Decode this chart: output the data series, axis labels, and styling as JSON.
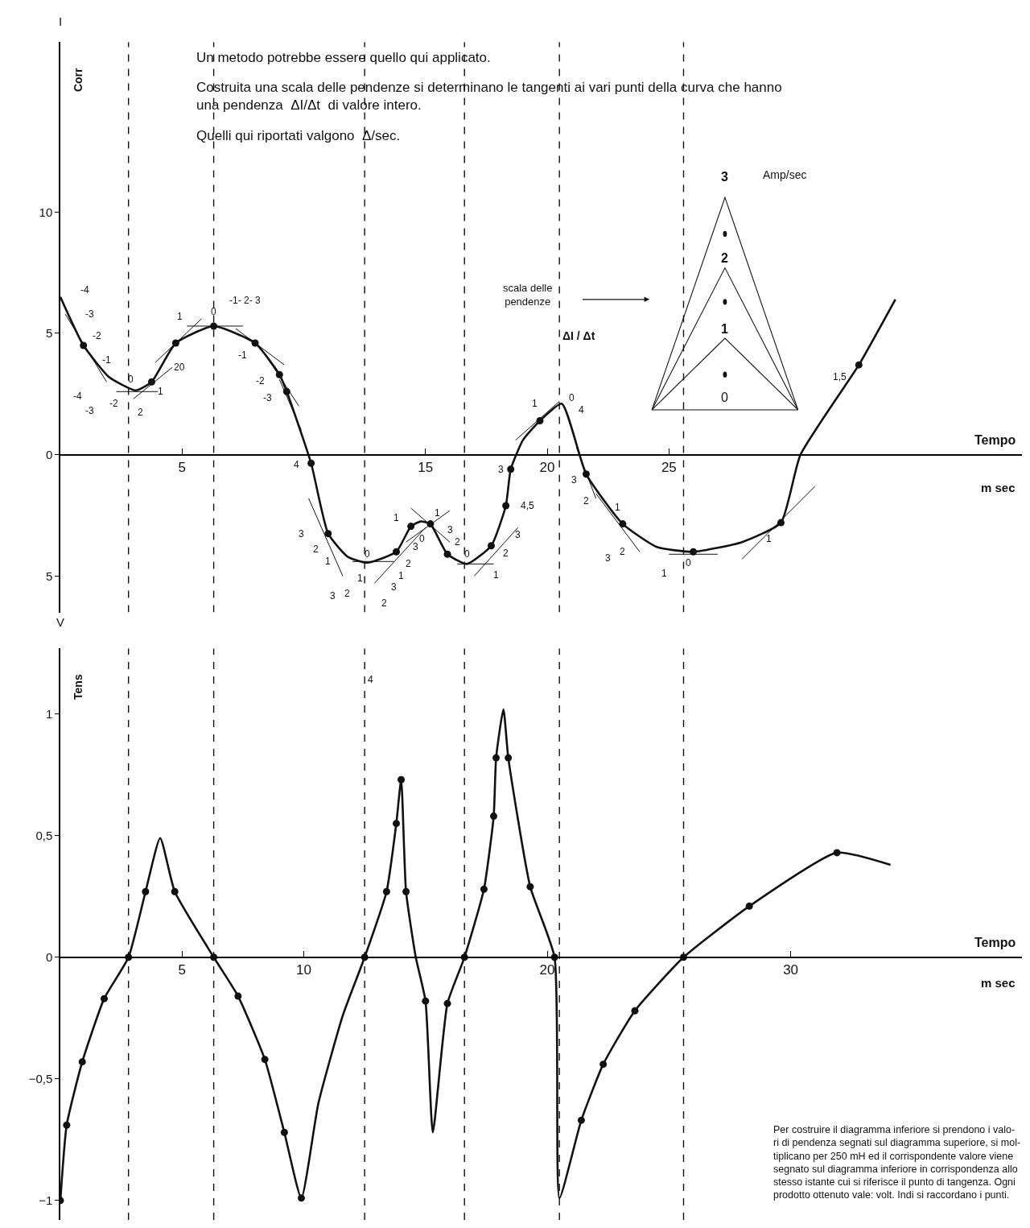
{
  "chart_data": [
    {
      "type": "line",
      "xlabel": "Tempo",
      "ylabel": "Corr",
      "xlim": [
        0,
        39.5
      ],
      "ylim": [
        -6.5,
        17
      ],
      "xticks": [
        5,
        15,
        20,
        25
      ],
      "yticks": [
        {
          "value": -5,
          "label": "5"
        },
        0,
        5,
        10
      ],
      "series": [
        {
          "color": "#111111",
          "marker": "none",
          "line_style": "solid",
          "x": [
            0,
            0.95,
            2,
            3.1,
            3.75,
            4.74,
            6.3,
            8.0,
            9.0,
            9.3,
            10.3,
            11.0,
            11.8,
            12.6,
            13.8,
            14.4,
            14.8,
            15.2,
            15.9,
            16.7,
            17.7,
            18.3,
            18.5,
            19.0,
            19.7,
            20.6,
            21.6,
            23.1,
            24.5,
            26.0,
            28,
            29.6,
            30.4,
            32.8,
            34.3
          ],
          "values": [
            6.5,
            4.5,
            3.2,
            2.65,
            3.0,
            4.6,
            5.3,
            4.6,
            3.3,
            2.6,
            -0.35,
            -3.25,
            -4.2,
            -4.45,
            -4.0,
            -2.95,
            -2.75,
            -2.85,
            -4.1,
            -4.5,
            -3.75,
            -2.1,
            -0.6,
            0.6,
            1.4,
            2.1,
            -0.8,
            -2.85,
            -3.8,
            -4.0,
            -3.6,
            -2.8,
            0,
            3.7,
            6.4
          ]
        },
        {
          "type": "scatter",
          "color": "#111111",
          "marker": "circle",
          "x": [
            0.95,
            3.75,
            4.74,
            6.3,
            8.0,
            9.0,
            9.3,
            10.3,
            11.0,
            13.8,
            14.4,
            15.2,
            15.9,
            17.7,
            18.3,
            18.5,
            19.7,
            21.6,
            23.1,
            26.0,
            29.6,
            32.8
          ],
          "values": [
            4.5,
            3.0,
            4.6,
            5.3,
            4.6,
            3.3,
            2.6,
            -0.35,
            -3.25,
            -4.0,
            -2.95,
            -2.85,
            -4.1,
            -3.75,
            -2.1,
            -0.6,
            1.4,
            -0.8,
            -2.85,
            -4.0,
            -2.8,
            3.7
          ]
        },
        {
          "color": "#111111",
          "marker": "none",
          "x": [
            0.2,
            1.9
          ],
          "values": [
            5.8,
            3.0
          ]
        },
        {
          "color": "#111111",
          "marker": "none",
          "x": [
            2.3,
            4.0
          ],
          "values": [
            2.6,
            2.6
          ]
        },
        {
          "color": "#111111",
          "marker": "none",
          "x": [
            3.0,
            4.6
          ],
          "values": [
            2.3,
            3.6
          ]
        },
        {
          "color": "#111111",
          "marker": "none",
          "x": [
            3.9,
            5.8
          ],
          "values": [
            3.8,
            5.6
          ]
        },
        {
          "color": "#111111",
          "marker": "none",
          "x": [
            5.2,
            7.5
          ],
          "values": [
            5.3,
            5.3
          ]
        },
        {
          "color": "#111111",
          "marker": "none",
          "x": [
            7.2,
            9.2
          ],
          "values": [
            5.2,
            3.7
          ]
        },
        {
          "color": "#111111",
          "marker": "none",
          "x": [
            8.5,
            9.8
          ],
          "values": [
            4.0,
            2.0
          ]
        },
        {
          "color": "#111111",
          "marker": "none",
          "x": [
            9.0,
            9.9
          ],
          "values": [
            3.1,
            1.0
          ]
        },
        {
          "color": "#111111",
          "marker": "none",
          "x": [
            10.2,
            11.6
          ],
          "values": [
            -1.8,
            -5.0
          ]
        },
        {
          "color": "#111111",
          "marker": "none",
          "x": [
            12.0,
            13.7
          ],
          "values": [
            -4.4,
            -4.4
          ]
        },
        {
          "color": "#111111",
          "marker": "none",
          "x": [
            12.9,
            15.0
          ],
          "values": [
            -5.3,
            -3.0
          ]
        },
        {
          "color": "#111111",
          "marker": "none",
          "x": [
            14.2,
            16.0
          ],
          "values": [
            -3.6,
            -2.3
          ]
        },
        {
          "color": "#111111",
          "marker": "none",
          "x": [
            14.4,
            16.0
          ],
          "values": [
            -2.2,
            -3.6
          ]
        },
        {
          "color": "#111111",
          "marker": "none",
          "x": [
            16.3,
            17.8
          ],
          "values": [
            -4.5,
            -4.5
          ]
        },
        {
          "color": "#111111",
          "marker": "none",
          "x": [
            17.0,
            18.8
          ],
          "values": [
            -5.0,
            -3.0
          ]
        },
        {
          "color": "#111111",
          "marker": "none",
          "x": [
            18.7,
            20.5
          ],
          "values": [
            0.6,
            2.2
          ]
        },
        {
          "color": "#111111",
          "marker": "none",
          "x": [
            21.2,
            22.0
          ],
          "values": [
            0.3,
            -1.8
          ]
        },
        {
          "color": "#111111",
          "marker": "none",
          "x": [
            22.0,
            23.8
          ],
          "values": [
            -1.6,
            -4.0
          ]
        },
        {
          "color": "#111111",
          "marker": "none",
          "x": [
            25.0,
            27.0
          ],
          "values": [
            -4.1,
            -4.1
          ]
        },
        {
          "color": "#111111",
          "marker": "none",
          "x": [
            28.0,
            31.0
          ],
          "values": [
            -4.3,
            -1.3
          ]
        }
      ],
      "ref_lines": [
        {
          "axis": "x",
          "value": 2.8,
          "line_style": "dashed",
          "color": "#111111"
        },
        {
          "axis": "x",
          "value": 6.3,
          "line_style": "dashed",
          "color": "#111111"
        },
        {
          "axis": "x",
          "value": 12.5,
          "line_style": "dashed",
          "color": "#111111"
        },
        {
          "axis": "x",
          "value": 16.6,
          "line_style": "dashed",
          "color": "#111111"
        },
        {
          "axis": "x",
          "value": 20.5,
          "line_style": "dashed",
          "color": "#111111"
        },
        {
          "axis": "x",
          "value": 25.6,
          "line_style": "dashed",
          "color": "#111111"
        }
      ],
      "annotations": [
        "Un metodo potrebbe essere quello qui applicato.",
        "Costruita una scala delle pendenze si determinano le tangenti ai vari punti della curva che hanno\nuna pendenza  ΔI/Δt  di valore intero.",
        "Quelli qui riportati valgono  Δ/sec.",
        "scala delle\npendenze",
        "ΔI / Δt",
        "3",
        "Amp/sec",
        "2",
        "1",
        "0",
        "I",
        "m sec",
        "-4",
        "-3",
        "-2",
        "-1",
        "-4",
        "-3",
        "-2",
        "0",
        "2",
        "1",
        "20",
        "1",
        "0",
        "-1- 2- 3",
        "-1",
        "-2",
        "-3",
        "4",
        "3",
        "2",
        "1",
        "3",
        "2",
        "1",
        "0",
        "1",
        "0",
        "3",
        "2",
        "1",
        "3",
        "2",
        "1",
        "3",
        "2",
        "0",
        "3",
        "4,5",
        "3",
        "2",
        "1",
        "1",
        "0",
        "4",
        "3",
        "2",
        "1",
        "3",
        "2",
        "1",
        "0",
        "1",
        "1,5"
      ]
    },
    {
      "type": "line",
      "xlabel": "Tempo",
      "ylabel": "Tens",
      "xlim": [
        0,
        39.5
      ],
      "ylim": [
        -1.08,
        1.27
      ],
      "xticks": [
        5,
        10,
        20,
        30
      ],
      "yticks": [
        {
          "value": -1,
          "label": "−1"
        },
        {
          "value": -0.5,
          "label": "−0,5"
        },
        0,
        {
          "value": 0.5,
          "label": "0,5"
        },
        1
      ],
      "series": [
        {
          "color": "#111111",
          "marker": "none",
          "line_style": "solid",
          "x": [
            0,
            0.26,
            0.9,
            1.8,
            2.8,
            3.5,
            4.1,
            4.7,
            6.3,
            7.3,
            8.4,
            9.2,
            9.9,
            10.6,
            11.6,
            12.5,
            13.4,
            13.8,
            14.0,
            14.2,
            14.6,
            15.0,
            15.3,
            15.9,
            16.6,
            17.4,
            17.8,
            17.9,
            18.2,
            18.4,
            19.3,
            20.3,
            20.5,
            21.4,
            22.3,
            23.6,
            25.6,
            28.3,
            31.9,
            34.1
          ],
          "values": [
            -1,
            -0.69,
            -0.43,
            -0.17,
            0,
            0.27,
            0.49,
            0.27,
            0,
            -0.16,
            -0.42,
            -0.72,
            -0.99,
            -0.6,
            -0.24,
            0,
            0.27,
            0.55,
            0.73,
            0.27,
            0,
            -0.18,
            -0.72,
            -0.19,
            0,
            0.28,
            0.58,
            0.82,
            1.02,
            0.82,
            0.29,
            0,
            -0.99,
            -0.67,
            -0.44,
            -0.22,
            0,
            0.21,
            0.43,
            0.38
          ]
        },
        {
          "type": "scatter",
          "color": "#111111",
          "marker": "circle",
          "x": [
            0,
            0.26,
            0.9,
            1.8,
            2.8,
            3.5,
            4.7,
            6.3,
            7.3,
            8.4,
            9.2,
            9.9,
            12.5,
            13.4,
            13.8,
            14.0,
            14.2,
            15.0,
            15.9,
            16.6,
            17.4,
            17.8,
            17.9,
            18.4,
            19.3,
            20.3,
            21.4,
            22.3,
            23.6,
            25.6,
            28.3,
            31.9
          ],
          "values": [
            -1,
            -0.69,
            -0.43,
            -0.17,
            0,
            0.27,
            0.27,
            0,
            -0.16,
            -0.42,
            -0.72,
            -0.99,
            0,
            0.27,
            0.55,
            0.73,
            0.27,
            -0.18,
            -0.19,
            0,
            0.28,
            0.58,
            0.82,
            0.82,
            0.29,
            0,
            -0.67,
            -0.44,
            -0.22,
            0,
            0.21,
            0.43
          ]
        }
      ],
      "ref_lines": [
        {
          "axis": "x",
          "value": 2.8,
          "line_style": "dashed",
          "color": "#111111"
        },
        {
          "axis": "x",
          "value": 6.3,
          "line_style": "dashed",
          "color": "#111111"
        },
        {
          "axis": "x",
          "value": 12.5,
          "line_style": "dashed",
          "color": "#111111"
        },
        {
          "axis": "x",
          "value": 16.6,
          "line_style": "dashed",
          "color": "#111111"
        },
        {
          "axis": "x",
          "value": 20.5,
          "line_style": "dashed",
          "color": "#111111"
        },
        {
          "axis": "x",
          "value": 25.6,
          "line_style": "dashed",
          "color": "#111111"
        }
      ],
      "annotations": [
        "V",
        "m sec",
        "Per costruire il diagramma inferiore si prendono i valo-\nri di pendenza segnati sul diagramma superiore, si mol-\ntiplicano per 250 mH ed il corrispondente valore viene\nsegnato sul diagramma inferiore in corrispondenza allo\nstesso istante cui si riferisce il punto di tangenza. Ogni\nprodotto ottenuto vale: volt. Indi si raccordano i punti.",
        "4"
      ]
    }
  ]
}
